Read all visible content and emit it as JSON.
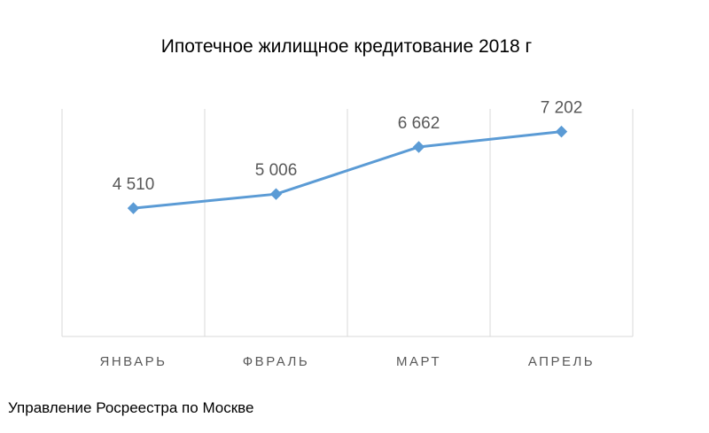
{
  "chart_data": {
    "type": "line",
    "title": "Ипотечное жилищное кредитование 2018 г",
    "xlabel": "",
    "ylabel": "",
    "categories": [
      "ЯНВАРЬ",
      "ФВРАЛЬ",
      "МАРТ",
      "АПРЕЛЬ"
    ],
    "series": [
      {
        "values": [
          4510,
          5006,
          6662,
          7202
        ],
        "labels": [
          "4 510",
          "5 006",
          "6 662",
          "7 202"
        ],
        "color": "#5B9BD5",
        "marker": "diamond"
      }
    ],
    "ylim": [
      0,
      8000
    ],
    "grid": "vertical",
    "gridColor": "#D9D9D9",
    "legend": "none"
  },
  "source": "Управление Росреестра по Москве"
}
